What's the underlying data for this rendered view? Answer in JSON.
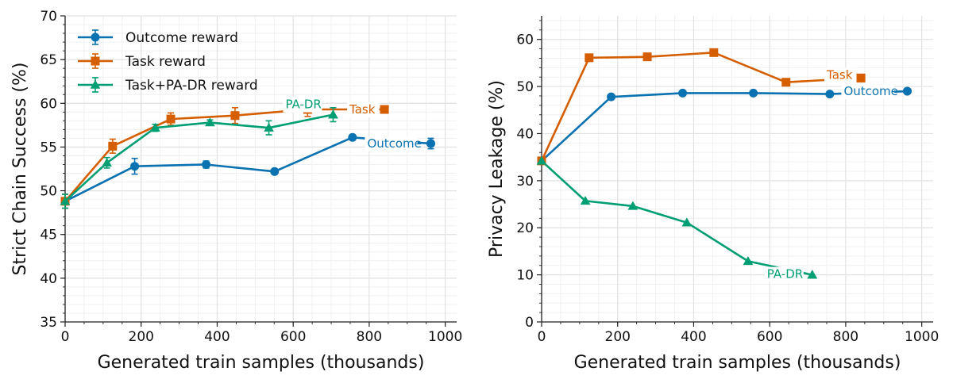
{
  "chart_data": [
    {
      "type": "line",
      "title": "",
      "xlabel": "Generated train samples (thousands)",
      "ylabel": "Strict Chain Success (%)",
      "xlim": [
        0,
        1030
      ],
      "ylim": [
        35,
        70
      ],
      "xticks": [
        0,
        200,
        400,
        600,
        800,
        1000
      ],
      "yticks": [
        35,
        40,
        45,
        50,
        55,
        60,
        65,
        70
      ],
      "grid": true,
      "legend": "top-left",
      "legend_entries": [
        "Outcome reward",
        "Task reward",
        "Task+PA-DR reward"
      ],
      "series": [
        {
          "name": "Outcome reward",
          "end_label": "Outcome",
          "color": "#0a72b0",
          "marker": "circle",
          "x": [
            0,
            183,
            371,
            551,
            756,
            962
          ],
          "y": [
            48.8,
            52.8,
            53.0,
            52.2,
            56.1,
            55.4
          ],
          "err": [
            0.8,
            0.9,
            0.4,
            0.3,
            0.3,
            0.6
          ]
        },
        {
          "name": "Task reward",
          "end_label": "Task",
          "color": "#d55e00",
          "marker": "square",
          "x": [
            0,
            125,
            278,
            447,
            638,
            840
          ],
          "y": [
            48.8,
            55.1,
            58.2,
            58.6,
            59.3,
            59.3
          ],
          "err": [
            0.8,
            0.8,
            0.7,
            0.9,
            0.8,
            0.3
          ]
        },
        {
          "name": "Task+PA-DR reward",
          "end_label": "PA-DR",
          "color": "#009e73",
          "marker": "triangle",
          "x": [
            0,
            110,
            237,
            381,
            536,
            705
          ],
          "y": [
            48.8,
            53.2,
            57.2,
            57.8,
            57.2,
            58.7
          ],
          "err": [
            0.8,
            0.6,
            0.4,
            0.3,
            0.8,
            0.8
          ]
        }
      ]
    },
    {
      "type": "line",
      "title": "",
      "xlabel": "Generated train samples (thousands)",
      "ylabel": "Privacy Leakage (%)",
      "xlim": [
        0,
        1030
      ],
      "ylim": [
        0,
        65
      ],
      "xticks": [
        0,
        200,
        400,
        600,
        800,
        1000
      ],
      "yticks": [
        0,
        10,
        20,
        30,
        40,
        50,
        60
      ],
      "grid": true,
      "series": [
        {
          "name": "Outcome reward",
          "end_label": "Outcome",
          "color": "#0a72b0",
          "marker": "circle",
          "x": [
            0,
            183,
            371,
            557,
            758,
            962
          ],
          "y": [
            34.2,
            47.8,
            48.6,
            48.6,
            48.4,
            49.0
          ]
        },
        {
          "name": "Task reward",
          "end_label": "Task",
          "color": "#d55e00",
          "marker": "square",
          "x": [
            0,
            125,
            278,
            453,
            643,
            840
          ],
          "y": [
            34.2,
            56.1,
            56.3,
            57.2,
            50.9,
            51.8
          ]
        },
        {
          "name": "Task+PA-DR reward",
          "end_label": "PA-DR",
          "color": "#009e73",
          "marker": "triangle",
          "x": [
            0,
            115,
            240,
            382,
            543,
            712
          ],
          "y": [
            34.2,
            25.7,
            24.6,
            21.1,
            12.9,
            10.0
          ]
        }
      ]
    }
  ]
}
